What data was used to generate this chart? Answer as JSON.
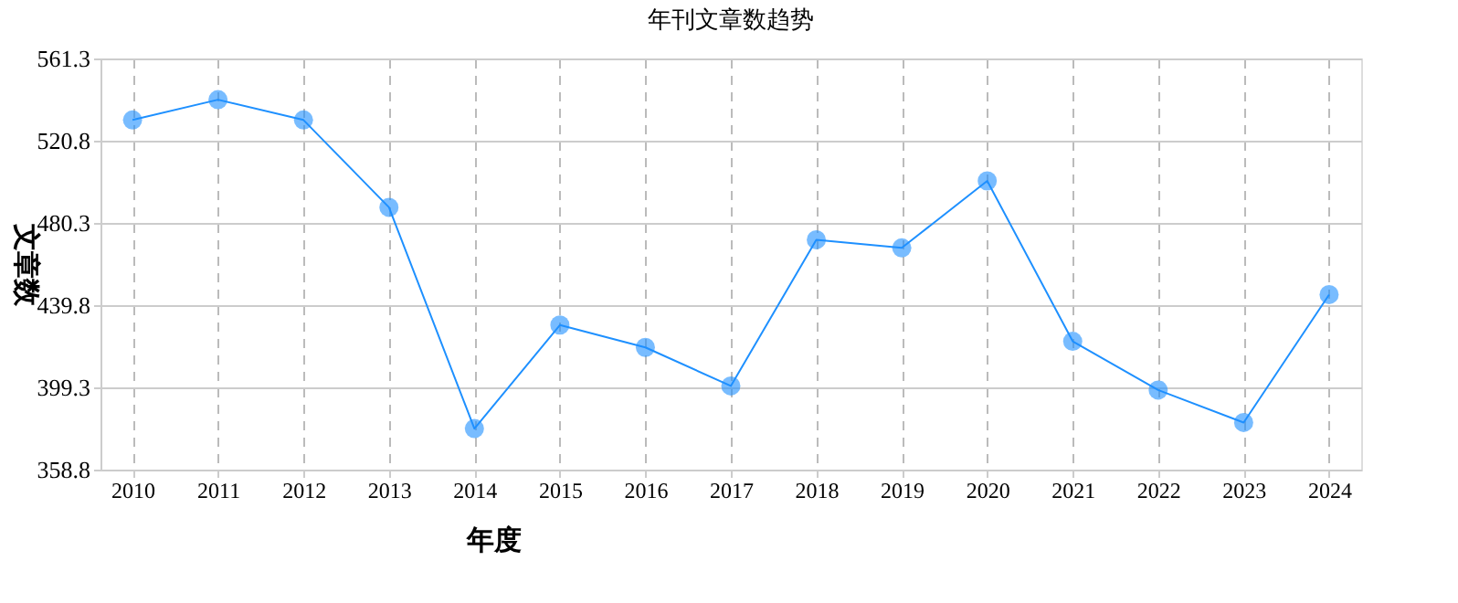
{
  "chart_data": {
    "type": "line",
    "title": "年刊文章数趋势",
    "xlabel": "年度",
    "ylabel": "文章数",
    "categories": [
      "2010",
      "2011",
      "2012",
      "2013",
      "2014",
      "2015",
      "2016",
      "2017",
      "2018",
      "2019",
      "2020",
      "2021",
      "2022",
      "2023",
      "2024"
    ],
    "series": [
      {
        "color": "#1e90ff",
        "values": [
          531,
          541,
          531,
          488,
          379,
          430,
          419,
          400,
          472,
          468,
          501,
          422,
          398,
          382,
          445
        ]
      }
    ],
    "ylim": [
      358.8,
      561.3
    ],
    "yticks": [
      358.8,
      399.3,
      439.8,
      480.3,
      520.8,
      561.3
    ],
    "grid": true,
    "marker": "circle",
    "line_style": "solid"
  }
}
